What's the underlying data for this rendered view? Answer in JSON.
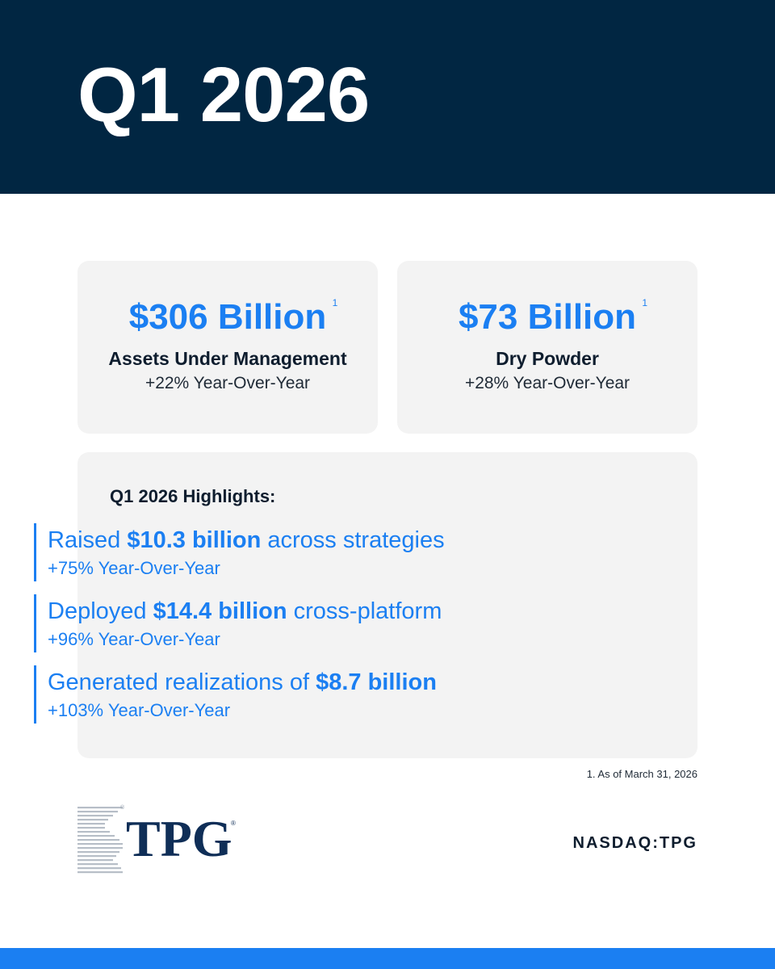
{
  "header": {
    "title": "Q1 2026"
  },
  "stats": [
    {
      "value": "$306 Billion",
      "footnote_ref": "1",
      "label": "Assets Under Management",
      "change": "+22% Year-Over-Year"
    },
    {
      "value": "$73 Billion",
      "footnote_ref": "1",
      "label": "Dry Powder",
      "change": "+28% Year-Over-Year"
    }
  ],
  "highlights": {
    "title": "Q1 2026 Highlights:",
    "items": [
      {
        "prefix": "Raised ",
        "bold": "$10.3 billion",
        "suffix": " across strategies",
        "change": "+75% Year-Over-Year"
      },
      {
        "prefix": "Deployed ",
        "bold": "$14.4 billion",
        "suffix": " cross-platform",
        "change": "+96% Year-Over-Year"
      },
      {
        "prefix": "Generated realizations of ",
        "bold": "$8.7 billion",
        "suffix": "",
        "change": "+103% Year-Over-Year"
      }
    ]
  },
  "footnote": "1. As of March 31, 2026",
  "logo": {
    "text": "TPG",
    "registered": "®"
  },
  "ticker": "NASDAQ:TPG",
  "colors": {
    "navy": "#012642",
    "accent_blue": "#1b7ff2",
    "card_bg": "#f3f3f3",
    "logo_navy": "#0f2e57"
  }
}
